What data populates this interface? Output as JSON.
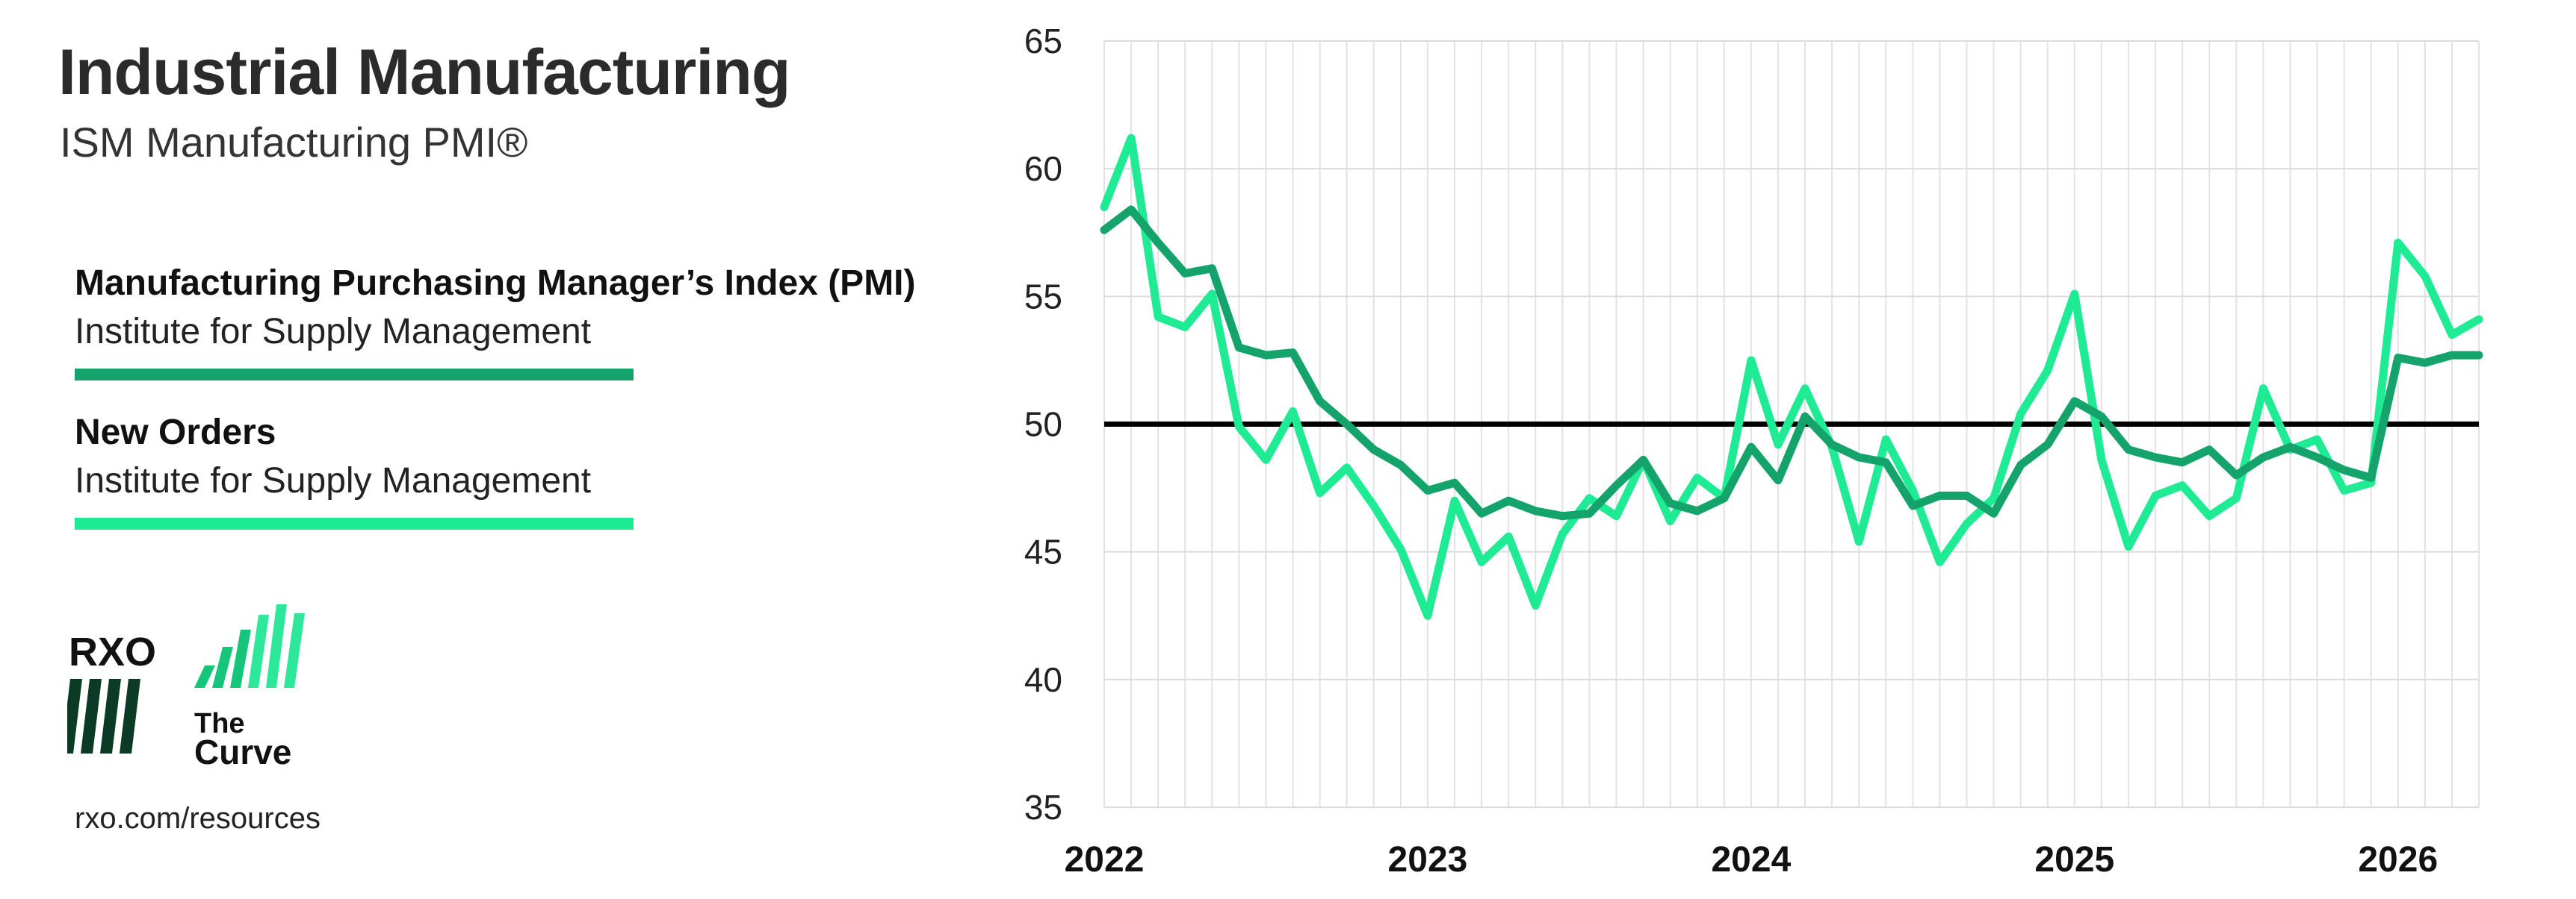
{
  "header": {
    "title": "Industrial Manufacturing",
    "subtitle": "ISM Manufacturing PMI®"
  },
  "legend": [
    {
      "name": "Manufacturing Purchasing Manager’s Index (PMI)",
      "source": "Institute for Supply Management",
      "color": "#14a36a"
    },
    {
      "name": "New Orders",
      "source": "Institute for Supply Management",
      "color": "#1eeb93"
    }
  ],
  "logo": {
    "brand": "RXO",
    "product_line1": "The",
    "product_line2": "Curve",
    "colors": {
      "dark": "#0b3b26",
      "green": "#17c57a",
      "light": "#2ee89a"
    }
  },
  "footer": {
    "url": "rxo.com/resources"
  },
  "chart_data": {
    "type": "line",
    "x_start": "2022-01",
    "x_end": "2026-04",
    "x_ticks": [
      "2022",
      "2023",
      "2024",
      "2025",
      "2026"
    ],
    "y_ticks": [
      "65",
      "60",
      "55",
      "50",
      "45",
      "40",
      "35"
    ],
    "ylim": [
      35,
      65
    ],
    "reference_line": 50,
    "grid": true,
    "series": [
      {
        "name": "Manufacturing Purchasing Manager’s Index (PMI)",
        "color": "#14a36a",
        "values": [
          57.6,
          58.4,
          57.1,
          55.9,
          56.1,
          53.0,
          52.7,
          52.8,
          50.9,
          50.0,
          49.0,
          48.4,
          47.4,
          47.7,
          46.5,
          47.0,
          46.6,
          46.4,
          46.5,
          47.6,
          48.6,
          46.9,
          46.6,
          47.1,
          49.1,
          47.8,
          50.3,
          49.2,
          48.7,
          48.5,
          46.8,
          47.2,
          47.2,
          46.5,
          48.4,
          49.2,
          50.9,
          50.3,
          49.0,
          48.7,
          48.5,
          49.0,
          48.0,
          48.7,
          49.1,
          48.7,
          48.2,
          47.9,
          52.6,
          52.4,
          52.7,
          52.7
        ]
      },
      {
        "name": "New Orders",
        "color": "#1eeb93",
        "values": [
          58.5,
          61.2,
          54.2,
          53.8,
          55.1,
          49.9,
          48.6,
          50.5,
          47.3,
          48.3,
          46.8,
          45.1,
          42.5,
          47.0,
          44.6,
          45.6,
          42.9,
          45.7,
          47.1,
          46.4,
          48.6,
          46.2,
          47.9,
          47.1,
          52.5,
          49.2,
          51.4,
          49.1,
          45.4,
          49.4,
          47.4,
          44.6,
          46.1,
          47.1,
          50.4,
          52.1,
          55.1,
          48.6,
          45.2,
          47.2,
          47.6,
          46.4,
          47.1,
          51.4,
          49.0,
          49.4,
          47.4,
          47.7,
          57.1,
          55.8,
          53.5,
          54.1
        ]
      }
    ]
  }
}
